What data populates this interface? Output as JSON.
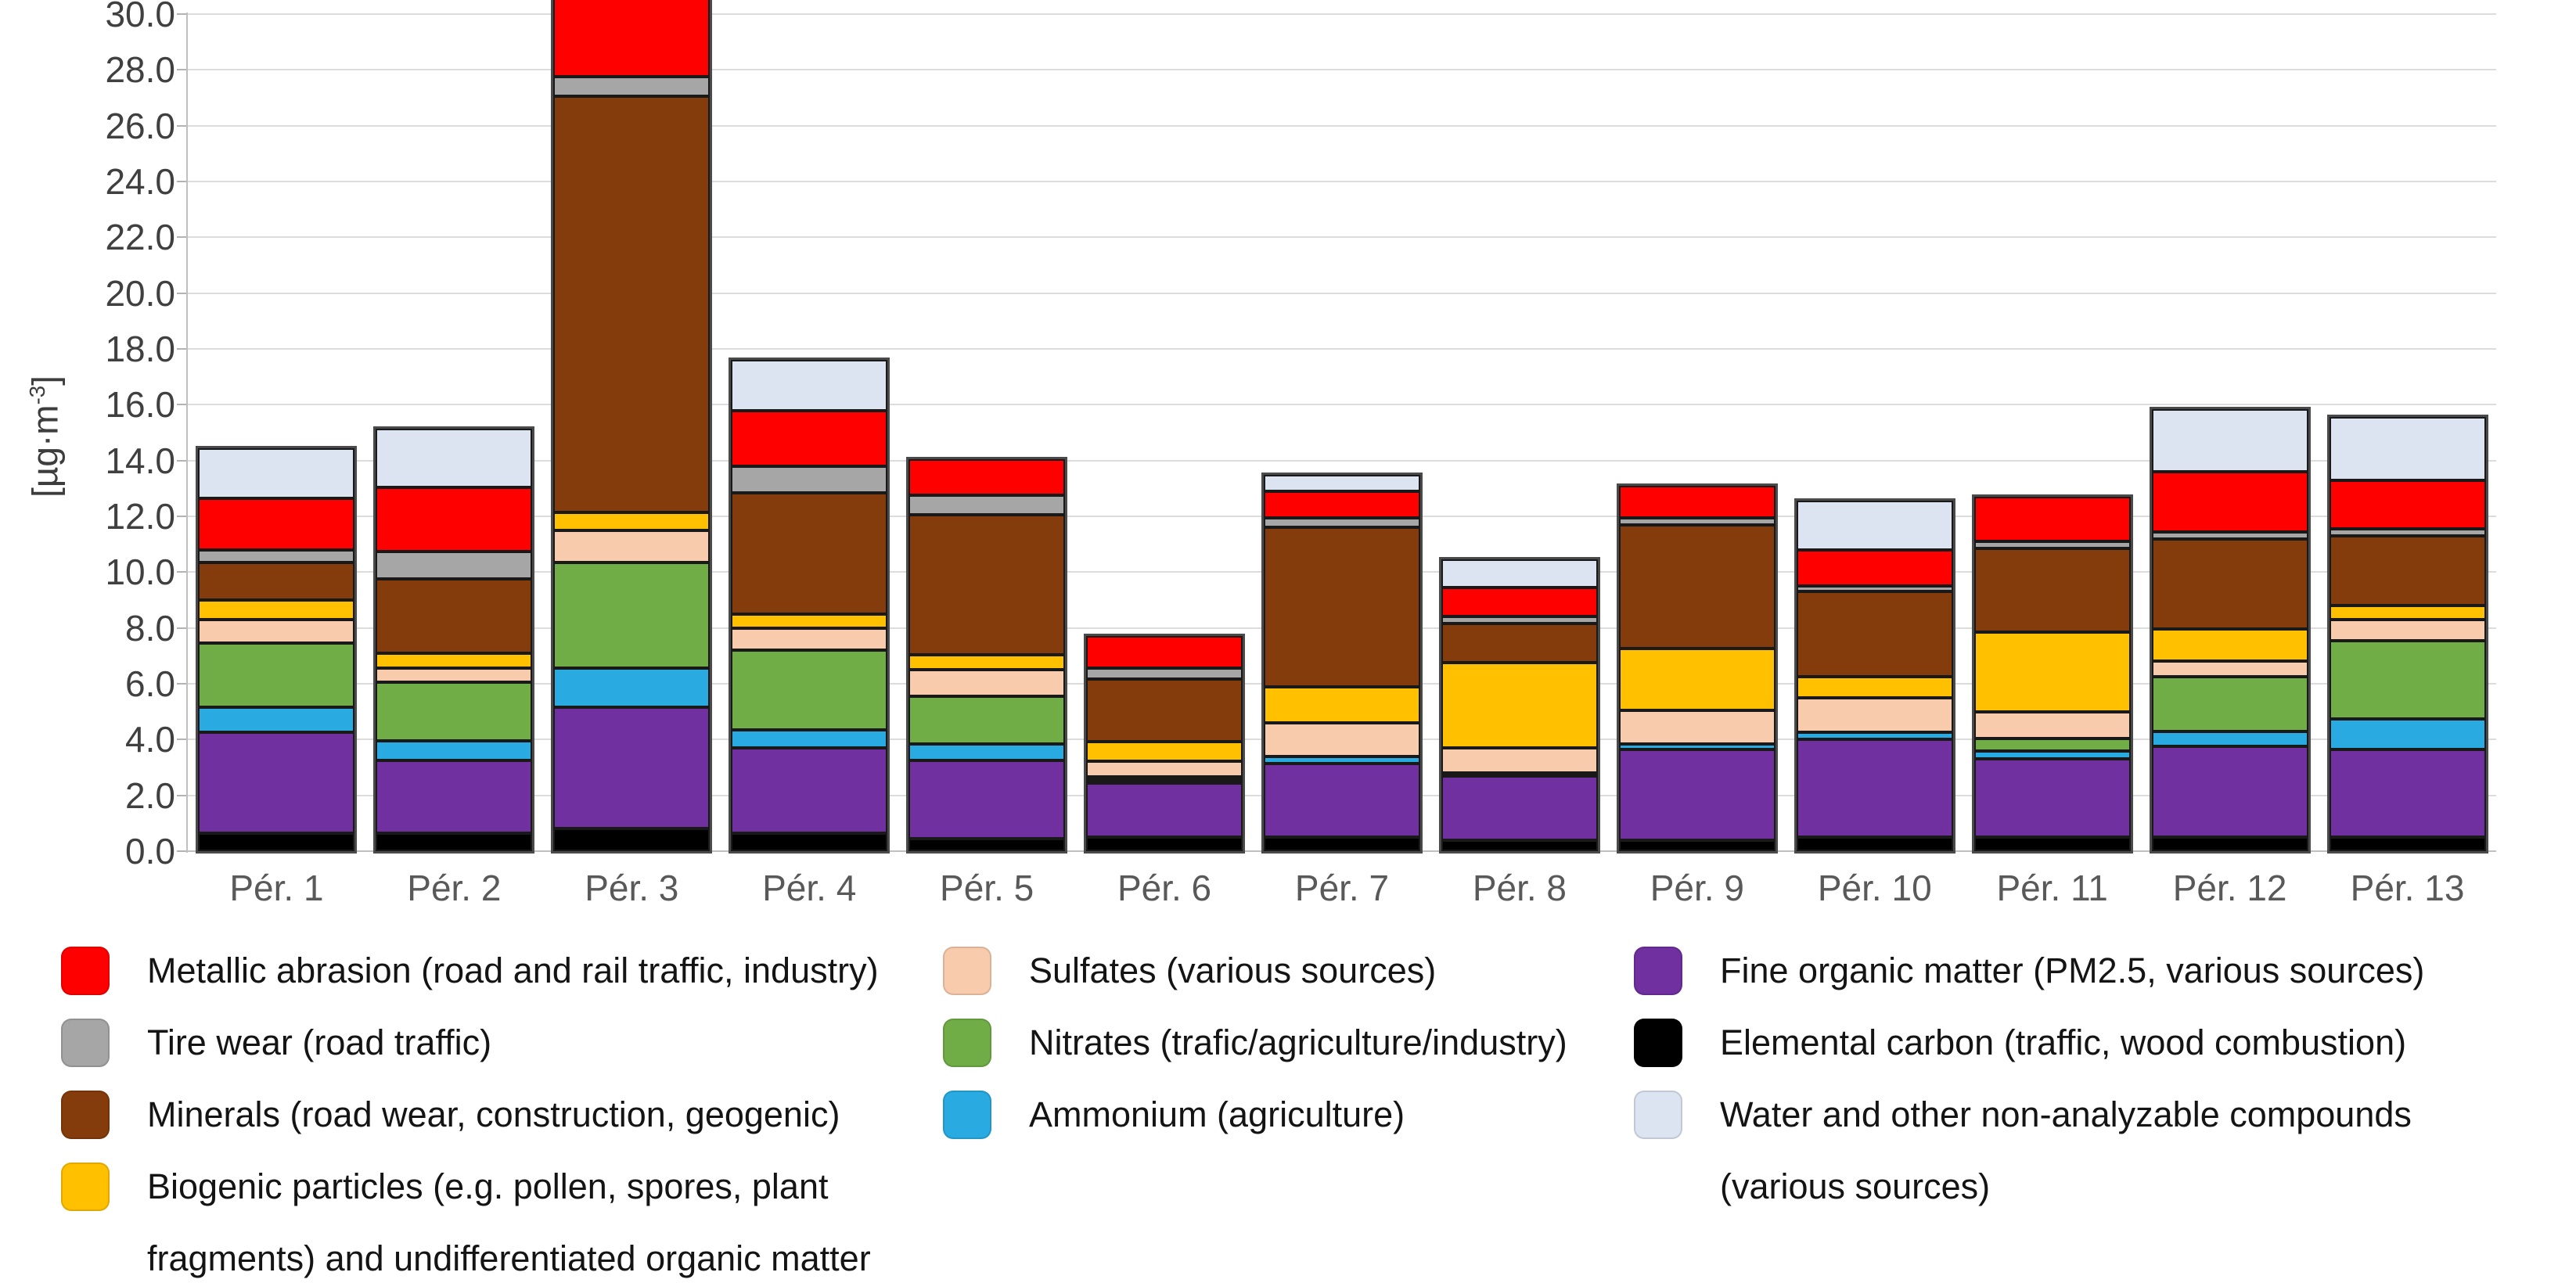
{
  "figure": {
    "y_axis_label": {
      "pre": "[µg·m",
      "sup": "-3",
      "post": "]"
    },
    "y_ticks": [
      "0.0",
      "2.0",
      "4.0",
      "6.0",
      "8.0",
      "10.0",
      "12.0",
      "14.0",
      "16.0",
      "18.0",
      "20.0",
      "22.0",
      "24.0",
      "26.0",
      "28.0",
      "30.0"
    ]
  },
  "chart_data": {
    "type": "bar",
    "stacked": true,
    "title": "",
    "xlabel": "",
    "ylabel": "[µg·m-3]",
    "ylim": [
      0,
      30
    ],
    "ytick_step": 2,
    "grid": true,
    "legend_position": "bottom",
    "categories": [
      "Pér. 1",
      "Pér. 2",
      "Pér. 3",
      "Pér. 4",
      "Pér. 5",
      "Pér. 6",
      "Pér. 7",
      "Pér. 8",
      "Pér. 9",
      "Pér. 10",
      "Pér. 11",
      "Pér. 12",
      "Pér. 13"
    ],
    "series": [
      {
        "key": "elemental-carbon",
        "name": "Elemental carbon (traffic, wood combustion)",
        "color": "#000000",
        "values": [
          0.65,
          0.65,
          0.8,
          0.65,
          0.45,
          0.5,
          0.5,
          0.4,
          0.4,
          0.5,
          0.5,
          0.5,
          0.5
        ]
      },
      {
        "key": "fine-organic-matter",
        "name": "Fine organic matter (PM2.5, various sources)",
        "color": "#7030A0",
        "values": [
          3.6,
          2.6,
          4.35,
          3.05,
          2.8,
          1.95,
          2.65,
          2.3,
          3.25,
          3.5,
          2.8,
          3.25,
          3.15
        ]
      },
      {
        "key": "ammonium",
        "name": "Ammonium (agriculture)",
        "color": "#29ABE2",
        "values": [
          0.9,
          0.7,
          1.4,
          0.65,
          0.6,
          0.1,
          0.25,
          0.1,
          0.2,
          0.25,
          0.3,
          0.55,
          1.1
        ]
      },
      {
        "key": "nitrates",
        "name": "Nitrates (trafic/agriculture/industry)",
        "color": "#70AD47",
        "values": [
          2.3,
          2.1,
          3.8,
          2.85,
          1.7,
          0.1,
          0.0,
          0.0,
          0.0,
          0.0,
          0.45,
          1.95,
          2.8
        ]
      },
      {
        "key": "sulfates",
        "name": "Sulfates (various sources)",
        "color": "#F8CBAD",
        "values": [
          0.85,
          0.5,
          1.15,
          0.8,
          0.95,
          0.55,
          1.2,
          0.9,
          1.2,
          1.25,
          0.95,
          0.55,
          0.75
        ]
      },
      {
        "key": "biogenic-particles",
        "name": "Biogenic particles (e.g. pollen, spores, plant fragments) and undifferentiated organic matter",
        "color": "#FFC000",
        "values": [
          0.7,
          0.55,
          0.65,
          0.5,
          0.55,
          0.7,
          1.3,
          3.05,
          2.2,
          0.75,
          2.85,
          1.15,
          0.5
        ]
      },
      {
        "key": "minerals",
        "name": "Minerals (road wear, construction, geogenic)",
        "color": "#843C0C",
        "values": [
          1.35,
          2.65,
          14.9,
          4.35,
          5.0,
          2.25,
          5.7,
          1.4,
          4.45,
          3.05,
          3.0,
          3.25,
          2.5
        ]
      },
      {
        "key": "tire-wear",
        "name": "Tire wear (road traffic)",
        "color": "#A6A6A6",
        "values": [
          0.45,
          1.0,
          0.7,
          0.95,
          0.7,
          0.4,
          0.35,
          0.25,
          0.25,
          0.2,
          0.25,
          0.25,
          0.25
        ]
      },
      {
        "key": "metallic-abrasion",
        "name": "Metallic abrasion (road and rail traffic, industry)",
        "color": "#FF0000",
        "values": [
          1.85,
          2.3,
          2.8,
          2.0,
          1.3,
          1.15,
          0.95,
          1.05,
          1.15,
          1.3,
          1.6,
          2.15,
          1.75
        ]
      },
      {
        "key": "water-non-analyzable",
        "name": "Water and other non-analyzable compounds (various sources)",
        "color": "#DCE4F2",
        "values": [
          1.8,
          2.1,
          0.0,
          1.8,
          0.0,
          0.0,
          0.6,
          1.0,
          0.0,
          1.75,
          0.0,
          2.25,
          2.25
        ]
      }
    ]
  },
  "legend": {
    "columns": [
      {
        "entries": [
          {
            "key": "metallic-abrasion",
            "color": "#FF0000",
            "lines": [
              "Metallic abrasion (road and rail traffic, industry)"
            ]
          },
          {
            "key": "tire-wear",
            "color": "#A6A6A6",
            "lines": [
              "Tire wear (road traffic)"
            ]
          },
          {
            "key": "minerals",
            "color": "#843C0C",
            "lines": [
              "Minerals (road wear, construction, geogenic)"
            ]
          },
          {
            "key": "biogenic-particles",
            "color": "#FFC000",
            "lines": [
              "Biogenic particles (e.g. pollen, spores, plant",
              "fragments) and undifferentiated organic matter"
            ]
          }
        ]
      },
      {
        "entries": [
          {
            "key": "sulfates",
            "color": "#F8CBAD",
            "lines": [
              "Sulfates (various sources)"
            ]
          },
          {
            "key": "nitrates",
            "color": "#70AD47",
            "lines": [
              "Nitrates (trafic/agriculture/industry)"
            ]
          },
          {
            "key": "ammonium",
            "color": "#29ABE2",
            "lines": [
              "Ammonium (agriculture)"
            ]
          }
        ]
      },
      {
        "entries": [
          {
            "key": "fine-organic-matter",
            "color": "#7030A0",
            "lines": [
              "Fine organic matter (PM2.5, various sources)"
            ]
          },
          {
            "key": "elemental-carbon",
            "color": "#000000",
            "lines": [
              "Elemental carbon (traffic, wood combustion)"
            ]
          },
          {
            "key": "water-non-analyzable",
            "color": "#DCE4F2",
            "lines": [
              "Water and other non-analyzable compounds",
              "(various sources)"
            ]
          }
        ]
      }
    ]
  }
}
